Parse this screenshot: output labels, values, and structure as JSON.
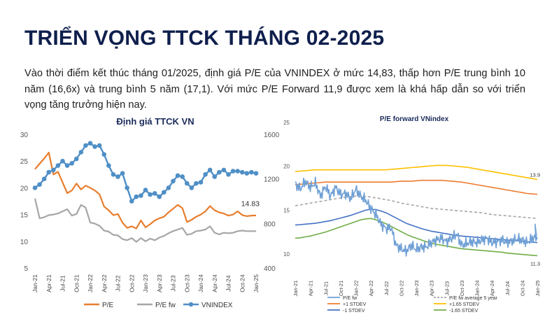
{
  "page": {
    "title": "TRIỂN VỌNG TTCK THÁNG 02-2025",
    "intro": "Vào thời điểm kết thúc tháng 01/2025, định giá P/E của VNINDEX ở mức 14,83, thấp hơn P/E trung bình 10 năm (16,6x) và trung bình 5 năm (17,1). Với mức P/E Forward 11,9 được xem là khá hấp dẫn so với triển vọng tăng trưởng hiện nay."
  },
  "chart_data": [
    {
      "type": "line",
      "title": "Định giá TTCK VN",
      "x_tick_labels": [
        "Jan-21",
        "Apr-21",
        "Jul-21",
        "Oct-21",
        "Jan-22",
        "Apr-22",
        "Jul-22",
        "Oct-22",
        "Jan-23",
        "Apr-23",
        "Jul-23",
        "Oct-23",
        "Jan-24",
        "Apr-24",
        "Jul-24",
        "Oct-24",
        "Jan-25"
      ],
      "x_months": [
        "Jan-21",
        "Feb-21",
        "Mar-21",
        "Apr-21",
        "May-21",
        "Jun-21",
        "Jul-21",
        "Aug-21",
        "Sep-21",
        "Oct-21",
        "Nov-21",
        "Dec-21",
        "Jan-22",
        "Feb-22",
        "Mar-22",
        "Apr-22",
        "May-22",
        "Jun-22",
        "Jul-22",
        "Aug-22",
        "Sep-22",
        "Oct-22",
        "Nov-22",
        "Dec-22",
        "Jan-23",
        "Feb-23",
        "Mar-23",
        "Apr-23",
        "May-23",
        "Jun-23",
        "Jul-23",
        "Aug-23",
        "Sep-23",
        "Oct-23",
        "Nov-23",
        "Dec-23",
        "Jan-24",
        "Feb-24",
        "Mar-24",
        "Apr-24",
        "May-24",
        "Jun-24",
        "Jul-24",
        "Aug-24",
        "Sep-24",
        "Oct-24",
        "Nov-24",
        "Dec-24",
        "Jan-25"
      ],
      "y_left": {
        "ticks": [
          5,
          10,
          15,
          20,
          25,
          30
        ],
        "lim": [
          5,
          30
        ]
      },
      "y_right": {
        "ticks": [
          400,
          800,
          1200,
          1600
        ],
        "lim": [
          400,
          1600
        ]
      },
      "annotation": "14.83",
      "series": [
        {
          "name": "P/E",
          "axis": "left",
          "color": "#e87d2d",
          "values": [
            23.5,
            24.5,
            25.5,
            26.6,
            22.5,
            23.0,
            21.0,
            19.0,
            19.5,
            20.8,
            19.7,
            20.4,
            20.0,
            19.5,
            18.8,
            16.5,
            15.8,
            14.9,
            15.1,
            13.5,
            12.5,
            12.8,
            12.4,
            13.9,
            12.6,
            13.2,
            13.9,
            14.3,
            14.6,
            15.4,
            16.1,
            16.8,
            16.2,
            13.6,
            14.0,
            14.6,
            15.0,
            15.6,
            16.6,
            15.8,
            15.4,
            15.2,
            14.8,
            15.0,
            15.6,
            14.9,
            14.7,
            14.8,
            14.83
          ]
        },
        {
          "name": "P/E fw",
          "axis": "left",
          "color": "#a6a6a6",
          "values": [
            18.0,
            14.3,
            14.5,
            14.9,
            15.0,
            15.2,
            15.6,
            16.0,
            14.8,
            15.1,
            16.8,
            16.3,
            13.5,
            13.3,
            12.9,
            12.0,
            11.8,
            11.2,
            11.1,
            10.4,
            10.2,
            10.6,
            9.9,
            10.6,
            10.0,
            10.5,
            10.2,
            10.7,
            11.0,
            11.5,
            11.9,
            12.2,
            12.5,
            11.2,
            11.4,
            11.9,
            12.0,
            12.2,
            12.8,
            11.6,
            11.3,
            11.6,
            11.5,
            11.6,
            11.9,
            12.0,
            11.9,
            11.9,
            11.9
          ]
        },
        {
          "name": "VNINDEX",
          "axis": "right",
          "color": "#4f8fc6",
          "values": [
            1120,
            1150,
            1200,
            1260,
            1280,
            1320,
            1360,
            1320,
            1340,
            1380,
            1440,
            1500,
            1520,
            1490,
            1500,
            1420,
            1320,
            1240,
            1220,
            1250,
            1120,
            1000,
            1040,
            1050,
            1100,
            1060,
            1070,
            1040,
            1080,
            1120,
            1180,
            1230,
            1220,
            1160,
            1120,
            1160,
            1170,
            1240,
            1280,
            1220,
            1260,
            1280,
            1240,
            1270,
            1270,
            1260,
            1250,
            1260,
            1250
          ]
        }
      ]
    },
    {
      "type": "line",
      "title": "P/E forward VNindex",
      "x_tick_labels": [
        "Jan-21",
        "Apr-21",
        "Jul-21",
        "Oct-21",
        "Jan-22",
        "Apr-22",
        "Jul-22",
        "Oct-22",
        "Jan-23",
        "Apr-23",
        "Jul-23",
        "Oct-23",
        "Jan-24",
        "Apr-24",
        "Jul-24",
        "Oct-24",
        "Jan-25"
      ],
      "x_months": [
        "Jan-21",
        "Feb-21",
        "Mar-21",
        "Apr-21",
        "May-21",
        "Jun-21",
        "Jul-21",
        "Aug-21",
        "Sep-21",
        "Oct-21",
        "Nov-21",
        "Dec-21",
        "Jan-22",
        "Feb-22",
        "Mar-22",
        "Apr-22",
        "May-22",
        "Jun-22",
        "Jul-22",
        "Aug-22",
        "Sep-22",
        "Oct-22",
        "Nov-22",
        "Dec-22",
        "Jan-23",
        "Feb-23",
        "Mar-23",
        "Apr-23",
        "May-23",
        "Jun-23",
        "Jul-23",
        "Aug-23",
        "Sep-23",
        "Oct-23",
        "Nov-23",
        "Dec-23",
        "Jan-24",
        "Feb-24",
        "Mar-24",
        "Apr-24",
        "May-24",
        "Jun-24",
        "Jul-24",
        "Aug-24",
        "Sep-24",
        "Oct-24",
        "Nov-24",
        "Dec-24",
        "Jan-25"
      ],
      "y_left": {
        "ticks": [
          10,
          15,
          20,
          25
        ],
        "lim": [
          8,
          25
        ]
      },
      "annotations": [
        "13.9",
        "11.3"
      ],
      "series": [
        {
          "name": "P/E fw",
          "color": "#6fa0d5",
          "values": [
            18.0,
            17.4,
            18.3,
            17.6,
            18.1,
            16.6,
            17.7,
            16.6,
            17.6,
            16.8,
            16.9,
            16.3,
            17.4,
            16.6,
            16.1,
            15.2,
            14.5,
            13.4,
            12.9,
            13.0,
            11.0,
            10.6,
            10.3,
            11.0,
            10.5,
            10.8,
            10.8,
            11.3,
            11.6,
            11.8,
            11.4,
            11.8,
            12.3,
            11.0,
            11.2,
            11.4,
            11.3,
            11.6,
            11.8,
            11.3,
            11.4,
            11.6,
            11.3,
            11.5,
            11.7,
            11.6,
            11.3,
            11.8,
            11.9
          ]
        },
        {
          "name": "P/E fw average 5 year",
          "color": "#a6a6a6",
          "dash": true,
          "values": [
            15.5,
            15.6,
            15.7,
            15.8,
            15.9,
            16.0,
            16.1,
            16.2,
            16.3,
            16.4,
            16.5,
            16.55,
            16.6,
            16.6,
            16.55,
            16.5,
            16.4,
            16.3,
            16.2,
            16.1,
            15.95,
            15.8,
            15.7,
            15.6,
            15.5,
            15.4,
            15.3,
            15.2,
            15.15,
            15.1,
            15.05,
            15.0,
            14.95,
            14.9,
            14.85,
            14.8,
            14.75,
            14.7,
            14.6,
            14.5,
            14.45,
            14.4,
            14.35,
            14.3,
            14.25,
            14.2,
            14.15,
            14.1,
            14.05
          ]
        },
        {
          "name": "+1 STDEV",
          "color": "#ed7d31",
          "values": [
            17.9,
            17.95,
            18.0,
            18.05,
            18.1,
            18.15,
            18.2,
            18.2,
            18.2,
            18.2,
            18.2,
            18.2,
            18.2,
            18.2,
            18.2,
            18.2,
            18.2,
            18.2,
            18.2,
            18.2,
            18.25,
            18.3,
            18.3,
            18.3,
            18.35,
            18.4,
            18.4,
            18.4,
            18.4,
            18.4,
            18.35,
            18.3,
            18.25,
            18.2,
            18.1,
            18.0,
            17.9,
            17.8,
            17.7,
            17.6,
            17.5,
            17.4,
            17.3,
            17.2,
            17.1,
            17.0,
            16.9,
            16.85,
            16.8
          ]
        },
        {
          "name": "+1.65 STDEV",
          "color": "#ffc000",
          "values": [
            19.4,
            19.45,
            19.5,
            19.55,
            19.6,
            19.6,
            19.6,
            19.6,
            19.6,
            19.6,
            19.6,
            19.6,
            19.6,
            19.6,
            19.6,
            19.6,
            19.6,
            19.6,
            19.6,
            19.65,
            19.7,
            19.75,
            19.8,
            19.85,
            19.9,
            19.95,
            20.0,
            20.05,
            20.1,
            20.1,
            20.1,
            20.05,
            20.0,
            19.95,
            19.9,
            19.8,
            19.7,
            19.6,
            19.5,
            19.4,
            19.3,
            19.2,
            19.1,
            19.0,
            18.9,
            18.8,
            18.7,
            18.6,
            18.5
          ]
        },
        {
          "name": "-1 STDEV",
          "color": "#4472c4",
          "values": [
            13.3,
            13.35,
            13.4,
            13.45,
            13.5,
            13.6,
            13.7,
            13.8,
            13.95,
            14.1,
            14.25,
            14.4,
            14.6,
            14.8,
            15.0,
            15.1,
            15.05,
            14.9,
            14.7,
            14.4,
            14.1,
            13.8,
            13.5,
            13.3,
            13.1,
            12.9,
            12.75,
            12.6,
            12.5,
            12.4,
            12.3,
            12.2,
            12.1,
            12.05,
            12.0,
            11.95,
            11.9,
            11.85,
            11.8,
            11.75,
            11.7,
            11.65,
            11.6,
            11.55,
            11.5,
            11.45,
            11.4,
            11.35,
            11.3
          ]
        },
        {
          "name": "-1.65 STDEV",
          "color": "#70ad47",
          "values": [
            11.8,
            11.85,
            11.95,
            12.05,
            12.2,
            12.35,
            12.5,
            12.7,
            12.9,
            13.1,
            13.3,
            13.5,
            13.7,
            13.9,
            14.0,
            14.05,
            13.9,
            13.7,
            13.45,
            13.15,
            12.85,
            12.55,
            12.25,
            12.0,
            11.8,
            11.6,
            11.4,
            11.25,
            11.1,
            11.0,
            10.9,
            10.8,
            10.7,
            10.6,
            10.55,
            10.5,
            10.45,
            10.4,
            10.35,
            10.3,
            10.25,
            10.2,
            10.1,
            10.05,
            10.0,
            9.95,
            9.9,
            9.85,
            9.8
          ]
        }
      ]
    }
  ]
}
